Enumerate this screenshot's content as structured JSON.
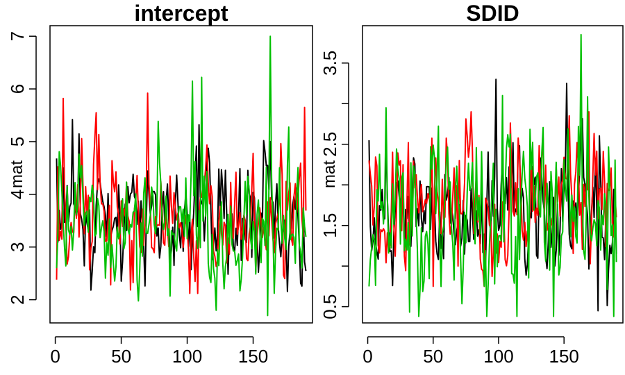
{
  "colors": {
    "series1": "#000000",
    "series2": "#ff0000",
    "series3": "#00c000"
  },
  "chart_data": [
    {
      "type": "line",
      "title": "intercept",
      "xlabel": "",
      "ylabel": "mat",
      "xlim": [
        -4,
        195
      ],
      "ylim": [
        1.56,
        7.2
      ],
      "xticks": [
        0,
        50,
        100,
        150
      ],
      "yticks": [
        2,
        3,
        4,
        5,
        6,
        7
      ],
      "ytick_labels": [
        "2",
        "3",
        "4",
        "5",
        "6",
        "7"
      ],
      "x": {
        "start": 1,
        "end": 190,
        "step": 1
      },
      "series": [
        {
          "color": "#000000",
          "mean": 3.55,
          "sd": 0.52,
          "min": 2.15,
          "max": 5.4,
          "key_points": [
            [
              1,
              4.68
            ],
            [
              6,
              4.5
            ],
            [
              13,
              5.42
            ],
            [
              109,
              5.32
            ],
            [
              168,
              4.2
            ]
          ]
        },
        {
          "color": "#ff0000",
          "mean": 3.45,
          "sd": 0.58,
          "min": 2.12,
          "max": 5.9,
          "key_points": [
            [
              1,
              2.38
            ],
            [
              6,
              5.82
            ],
            [
              31,
              5.55
            ],
            [
              70,
              5.92
            ],
            [
              189,
              5.65
            ]
          ]
        },
        {
          "color": "#00c000",
          "mean": 3.55,
          "sd": 0.62,
          "min": 1.7,
          "max": 7.0,
          "key_points": [
            [
              1,
              2.6
            ],
            [
              104,
              6.15
            ],
            [
              111,
              6.22
            ],
            [
              122,
              1.8
            ],
            [
              161,
              1.7
            ],
            [
              163,
              7.0
            ]
          ]
        }
      ]
    },
    {
      "type": "line",
      "title": "SDID",
      "xlabel": "",
      "ylabel": "mat",
      "xlim": [
        -4,
        195
      ],
      "ylim": [
        0.3,
        3.96
      ],
      "xticks": [
        0,
        50,
        100,
        150
      ],
      "yticks": [
        0.5,
        1,
        1.5,
        2,
        2.5,
        3,
        3.5
      ],
      "ytick_labels": [
        "0.5",
        "",
        "1.5",
        "",
        "2.5",
        "",
        "3.5"
      ],
      "x": {
        "start": 1,
        "end": 190,
        "step": 1
      },
      "series": [
        {
          "color": "#000000",
          "mean": 1.7,
          "sd": 0.38,
          "min": 0.45,
          "max": 3.3,
          "key_points": [
            [
              1,
              2.55
            ],
            [
              98,
              3.3
            ],
            [
              152,
              3.25
            ],
            [
              176,
              0.45
            ],
            [
              190,
              1.15
            ]
          ]
        },
        {
          "color": "#ff0000",
          "mean": 1.75,
          "sd": 0.42,
          "min": 0.75,
          "max": 2.9,
          "key_points": [
            [
              1,
              2.3
            ],
            [
              50,
              0.75
            ],
            [
              154,
              2.85
            ],
            [
              169,
              2.9
            ],
            [
              190,
              1.6
            ]
          ]
        },
        {
          "color": "#00c000",
          "mean": 1.65,
          "sd": 0.5,
          "min": 0.38,
          "max": 3.85,
          "key_points": [
            [
              1,
              0.75
            ],
            [
              14,
              2.95
            ],
            [
              103,
              3.1
            ],
            [
              163,
              3.85
            ],
            [
              188,
              0.38
            ],
            [
              190,
              1.05
            ]
          ]
        }
      ]
    }
  ]
}
